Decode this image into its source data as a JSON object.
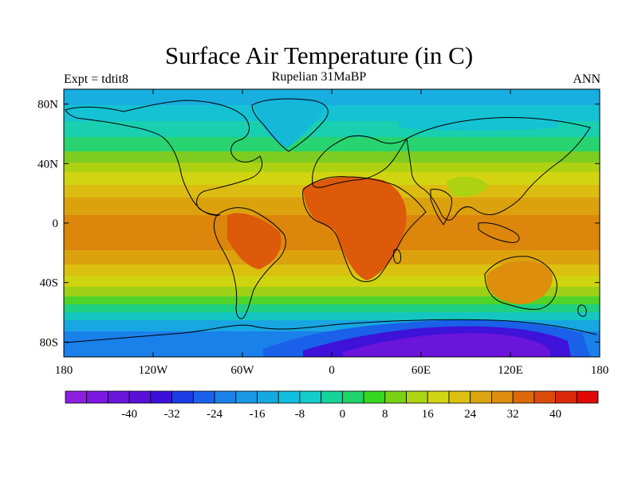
{
  "title": "Surface Air Temperature (in C)",
  "subtitle": "Rupelian  31MaBP",
  "left_label": "Expt = tdtit8",
  "right_label": "ANN",
  "map": {
    "lon_range": [
      -180,
      180
    ],
    "lat_range": [
      -90,
      90
    ],
    "lon_ticks": [
      {
        "value": -180,
        "label": "180"
      },
      {
        "value": -120,
        "label": "120W"
      },
      {
        "value": -60,
        "label": "60W"
      },
      {
        "value": 0,
        "label": "0"
      },
      {
        "value": 60,
        "label": "60E"
      },
      {
        "value": 120,
        "label": "120E"
      },
      {
        "value": 180,
        "label": "180"
      }
    ],
    "lat_ticks": [
      {
        "value": 80,
        "label": "80N"
      },
      {
        "value": 40,
        "label": "40N"
      },
      {
        "value": 0,
        "label": "0"
      },
      {
        "value": -40,
        "label": "40S"
      },
      {
        "value": -80,
        "label": "80S"
      }
    ]
  },
  "colorbar": {
    "colors": [
      "#8c1fe0",
      "#7a17e0",
      "#6a14dc",
      "#5a10d8",
      "#3c10d8",
      "#1c3ee6",
      "#1a62ec",
      "#1a80ea",
      "#1898e6",
      "#14aae0",
      "#12bee0",
      "#14cccc",
      "#14d49a",
      "#20d26a",
      "#34d820",
      "#7cd014",
      "#acd410",
      "#d2d612",
      "#dcc210",
      "#dca610",
      "#dc8e0c",
      "#dc6a0a",
      "#dc4a0a",
      "#dc2808",
      "#e00808"
    ],
    "labels": [
      {
        "index": 3,
        "label": "-40"
      },
      {
        "index": 5,
        "label": "-32"
      },
      {
        "index": 7,
        "label": "-24"
      },
      {
        "index": 9,
        "label": "-16"
      },
      {
        "index": 11,
        "label": "-8"
      },
      {
        "index": 13,
        "label": "0"
      },
      {
        "index": 15,
        "label": "8"
      },
      {
        "index": 17,
        "label": "16"
      },
      {
        "index": 19,
        "label": "24"
      },
      {
        "index": 21,
        "label": "32"
      },
      {
        "index": 23,
        "label": "40"
      }
    ]
  }
}
